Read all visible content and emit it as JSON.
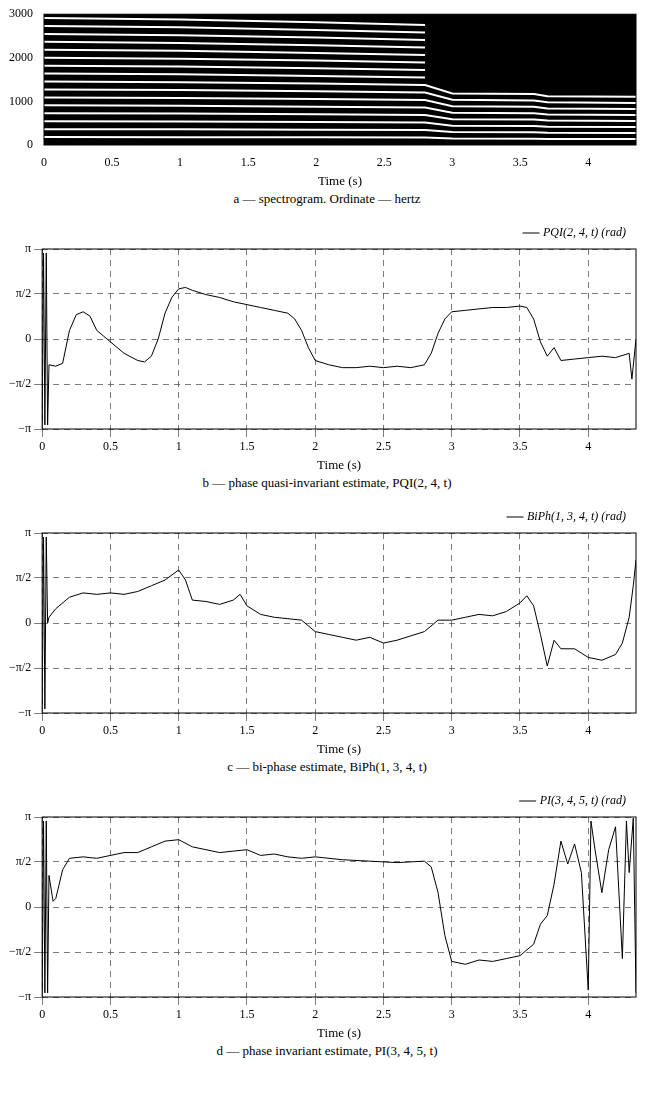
{
  "chart_data": [
    {
      "type": "spectrogram",
      "title": "a — spectrogram. Ordinate — hertz",
      "x_label": "Time (s)",
      "x": [
        0,
        1,
        2,
        2.8,
        3.0,
        3.6,
        3.7,
        4.35
      ],
      "xlim": [
        0,
        4.35
      ],
      "xticks": [
        0,
        0.5,
        1,
        1.5,
        2,
        2.5,
        3,
        3.5,
        4
      ],
      "ylim": [
        0,
        3000
      ],
      "yticks": [
        0,
        1000,
        2000,
        3000
      ],
      "grid": false,
      "series": [
        {
          "color": "#ffffff",
          "values": [
            182,
            180,
            176,
            172,
            148,
            146,
            140,
            138
          ]
        },
        {
          "color": "#ffffff",
          "values": [
            364,
            360,
            352,
            344,
            296,
            292,
            280,
            276
          ]
        },
        {
          "color": "#ffffff",
          "values": [
            546,
            540,
            528,
            516,
            444,
            438,
            420,
            414
          ]
        },
        {
          "color": "#ffffff",
          "values": [
            728,
            720,
            704,
            688,
            592,
            584,
            560,
            552
          ]
        },
        {
          "color": "#ffffff",
          "values": [
            910,
            900,
            880,
            860,
            740,
            730,
            700,
            690
          ]
        },
        {
          "color": "#ffffff",
          "values": [
            1092,
            1080,
            1056,
            1032,
            888,
            876,
            840,
            828
          ]
        },
        {
          "color": "#ffffff",
          "values": [
            1274,
            1260,
            1232,
            1204,
            1036,
            1022,
            980,
            966
          ]
        },
        {
          "color": "#ffffff",
          "values": [
            1456,
            1440,
            1408,
            1376,
            1184,
            1168,
            1120,
            1104
          ]
        },
        {
          "color": "#ffffff",
          "values": [
            1638,
            1620,
            1584,
            1548,
            null,
            null,
            null,
            null
          ]
        },
        {
          "color": "#ffffff",
          "values": [
            1820,
            1800,
            1760,
            1720,
            null,
            null,
            null,
            null
          ]
        },
        {
          "color": "#ffffff",
          "values": [
            2002,
            1980,
            1936,
            1892,
            null,
            null,
            null,
            null
          ]
        },
        {
          "color": "#ffffff",
          "values": [
            2184,
            2160,
            2112,
            2064,
            null,
            null,
            null,
            null
          ]
        },
        {
          "color": "#ffffff",
          "values": [
            2366,
            2340,
            2288,
            2236,
            null,
            null,
            null,
            null
          ]
        },
        {
          "color": "#ffffff",
          "values": [
            2548,
            2520,
            2464,
            2408,
            null,
            null,
            null,
            null
          ]
        },
        {
          "color": "#ffffff",
          "values": [
            2730,
            2700,
            2640,
            2580,
            null,
            null,
            null,
            null
          ]
        },
        {
          "color": "#ffffff",
          "values": [
            2912,
            2880,
            2816,
            2752,
            null,
            null,
            null,
            null
          ]
        }
      ]
    },
    {
      "type": "line",
      "title": "b — phase quasi-invariant estimate, PQI(2, 4, t)",
      "x_label": "Time (s)",
      "x": [
        0,
        0.01,
        0.02,
        0.03,
        0.04,
        0.05,
        0.1,
        0.15,
        0.2,
        0.25,
        0.3,
        0.35,
        0.4,
        0.45,
        0.5,
        0.6,
        0.7,
        0.75,
        0.8,
        0.85,
        0.9,
        0.95,
        1.0,
        1.05,
        1.1,
        1.2,
        1.3,
        1.4,
        1.5,
        1.6,
        1.7,
        1.8,
        1.85,
        1.9,
        1.95,
        2.0,
        2.1,
        2.2,
        2.3,
        2.4,
        2.5,
        2.6,
        2.7,
        2.8,
        2.85,
        2.9,
        2.95,
        3.0,
        3.1,
        3.2,
        3.3,
        3.4,
        3.5,
        3.55,
        3.6,
        3.65,
        3.7,
        3.75,
        3.8,
        3.9,
        4.0,
        4.1,
        4.2,
        4.3,
        4.32,
        4.35
      ],
      "xlim": [
        0,
        4.35
      ],
      "xticks": [
        0,
        0.5,
        1,
        1.5,
        2,
        2.5,
        3,
        3.5,
        4
      ],
      "ylim": [
        -3.14159,
        3.14159
      ],
      "yticks": [
        {
          "value": -3.14159,
          "label": "−π"
        },
        {
          "value": -1.5708,
          "label": "−π/2"
        },
        0,
        {
          "value": 1.5708,
          "label": "π/2"
        },
        {
          "value": 3.14159,
          "label": "π"
        }
      ],
      "grid": true,
      "legend": "top right",
      "series": [
        {
          "name": "PQI(2, 4, t) (rad)",
          "color": "#000000",
          "line_style": "solid",
          "values": [
            -3.0,
            3.0,
            -3.0,
            3.0,
            -3.0,
            -0.9,
            -0.95,
            -0.85,
            0.3,
            0.85,
            0.95,
            0.8,
            0.3,
            0.1,
            -0.1,
            -0.5,
            -0.75,
            -0.8,
            -0.6,
            0.0,
            0.9,
            1.45,
            1.75,
            1.8,
            1.7,
            1.55,
            1.45,
            1.3,
            1.2,
            1.1,
            1.0,
            0.9,
            0.7,
            0.3,
            -0.3,
            -0.75,
            -0.9,
            -1.0,
            -1.0,
            -0.95,
            -1.0,
            -0.95,
            -1.0,
            -0.9,
            -0.5,
            0.2,
            0.7,
            0.95,
            1.0,
            1.05,
            1.1,
            1.1,
            1.15,
            1.1,
            0.7,
            -0.1,
            -0.6,
            -0.3,
            -0.75,
            -0.7,
            -0.65,
            -0.6,
            -0.65,
            -0.5,
            -1.4,
            0.0
          ]
        }
      ]
    },
    {
      "type": "line",
      "title": "c — bi-phase estimate, BiPh(1, 3, 4, t)",
      "x_label": "Time (s)",
      "x": [
        0,
        0.01,
        0.02,
        0.03,
        0.04,
        0.05,
        0.1,
        0.2,
        0.3,
        0.4,
        0.5,
        0.6,
        0.7,
        0.8,
        0.9,
        1.0,
        1.05,
        1.1,
        1.2,
        1.3,
        1.4,
        1.45,
        1.5,
        1.6,
        1.7,
        1.8,
        1.9,
        2.0,
        2.1,
        2.2,
        2.3,
        2.4,
        2.5,
        2.6,
        2.7,
        2.8,
        2.9,
        3.0,
        3.1,
        3.2,
        3.3,
        3.4,
        3.5,
        3.55,
        3.6,
        3.65,
        3.7,
        3.75,
        3.8,
        3.9,
        4.0,
        4.1,
        4.2,
        4.25,
        4.3,
        4.33,
        4.35
      ],
      "xlim": [
        0,
        4.35
      ],
      "xticks": [
        0,
        0.5,
        1,
        1.5,
        2,
        2.5,
        3,
        3.5,
        4
      ],
      "ylim": [
        -3.14159,
        3.14159
      ],
      "yticks": [
        {
          "value": -3.14159,
          "label": "−π"
        },
        {
          "value": -1.5708,
          "label": "−π/2"
        },
        0,
        {
          "value": 1.5708,
          "label": "π/2"
        },
        {
          "value": 3.14159,
          "label": "π"
        }
      ],
      "grid": true,
      "legend": "top right",
      "series": [
        {
          "name": "BiPh(1, 3, 4, t) (rad)",
          "color": "#000000",
          "line_style": "solid",
          "values": [
            -3.0,
            3.0,
            -3.0,
            3.0,
            0.0,
            0.2,
            0.5,
            0.9,
            1.05,
            1.0,
            1.05,
            1.0,
            1.1,
            1.3,
            1.5,
            1.85,
            1.5,
            0.8,
            0.75,
            0.65,
            0.8,
            1.0,
            0.6,
            0.3,
            0.2,
            0.15,
            0.1,
            -0.3,
            -0.4,
            -0.5,
            -0.6,
            -0.5,
            -0.7,
            -0.6,
            -0.45,
            -0.3,
            0.1,
            0.1,
            0.2,
            0.3,
            0.25,
            0.4,
            0.7,
            0.95,
            0.6,
            -0.4,
            -1.5,
            -0.6,
            -0.9,
            -0.9,
            -1.2,
            -1.3,
            -1.1,
            -0.7,
            0.2,
            1.3,
            2.2
          ]
        }
      ]
    },
    {
      "type": "line",
      "title": "d — phase invariant estimate, PI(3, 4, 5, t)",
      "x_label": "Time (s)",
      "x": [
        0,
        0.01,
        0.02,
        0.03,
        0.04,
        0.05,
        0.08,
        0.1,
        0.15,
        0.2,
        0.3,
        0.4,
        0.5,
        0.6,
        0.7,
        0.8,
        0.9,
        1.0,
        1.1,
        1.2,
        1.3,
        1.4,
        1.5,
        1.6,
        1.7,
        1.8,
        1.9,
        2.0,
        2.2,
        2.4,
        2.6,
        2.8,
        2.85,
        2.9,
        2.95,
        3.0,
        3.1,
        3.2,
        3.3,
        3.4,
        3.5,
        3.6,
        3.65,
        3.7,
        3.75,
        3.8,
        3.85,
        3.9,
        3.95,
        4.0,
        4.02,
        4.05,
        4.1,
        4.15,
        4.2,
        4.25,
        4.28,
        4.3,
        4.33,
        4.35
      ],
      "xlim": [
        0,
        4.35
      ],
      "xticks": [
        0,
        0.5,
        1,
        1.5,
        2,
        2.5,
        3,
        3.5,
        4
      ],
      "ylim": [
        -3.14159,
        3.14159
      ],
      "yticks": [
        {
          "value": -3.14159,
          "label": "−π"
        },
        {
          "value": -1.5708,
          "label": "−π/2"
        },
        0,
        {
          "value": 1.5708,
          "label": "π/2"
        },
        {
          "value": 3.14159,
          "label": "π"
        }
      ],
      "grid": true,
      "legend": "top right",
      "series": [
        {
          "name": "PI(3, 4, 5, t) (rad)",
          "color": "#000000",
          "line_style": "solid",
          "values": [
            -3.0,
            3.0,
            -3.0,
            3.0,
            -3.0,
            1.1,
            0.2,
            0.3,
            1.3,
            1.7,
            1.75,
            1.7,
            1.8,
            1.9,
            1.9,
            2.1,
            2.3,
            2.35,
            2.1,
            2.0,
            1.9,
            1.95,
            2.0,
            1.8,
            1.85,
            1.75,
            1.7,
            1.75,
            1.65,
            1.6,
            1.55,
            1.6,
            1.4,
            0.5,
            -1.0,
            -1.9,
            -2.0,
            -1.85,
            -1.9,
            -1.8,
            -1.7,
            -1.3,
            -0.6,
            -0.3,
            0.8,
            2.3,
            1.5,
            2.2,
            1.2,
            -2.9,
            3.0,
            2.0,
            0.5,
            2.0,
            2.8,
            -1.8,
            3.0,
            1.2,
            3.1,
            -3.0
          ]
        }
      ]
    }
  ]
}
